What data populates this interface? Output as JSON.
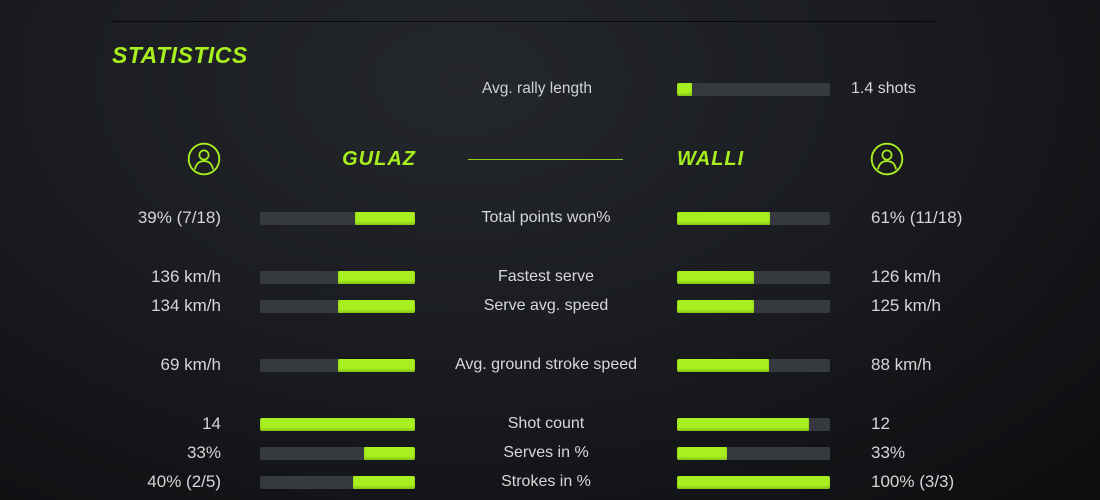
{
  "colors": {
    "accent": "#a7ef1e",
    "track": "#36393d",
    "text": "#d4d6d7"
  },
  "chart_data": {
    "type": "bar",
    "title": "STATISTICS",
    "legend_position": "top",
    "players": {
      "left": {
        "name": "GULAZ"
      },
      "right": {
        "name": "WALLI"
      }
    },
    "header_stat": {
      "label": "Avg. rally length",
      "value": "1.4 shots",
      "fill_pct": 10
    },
    "rows": [
      {
        "label": "Total points won%",
        "left": "39% (7/18)",
        "right": "61% (11/18)",
        "left_pct": 39,
        "right_pct": 61
      },
      {
        "label": "Fastest serve",
        "left": "136 km/h",
        "right": "126 km/h",
        "left_pct": 50,
        "right_pct": 50
      },
      {
        "label": "Serve avg. speed",
        "left": "134 km/h",
        "right": "125 km/h",
        "left_pct": 50,
        "right_pct": 50
      },
      {
        "label": "Avg. ground stroke speed",
        "left": "69 km/h",
        "right": "88 km/h",
        "left_pct": 50,
        "right_pct": 60
      },
      {
        "label": "Shot count",
        "left": "14",
        "right": "12",
        "left_pct": 100,
        "right_pct": 86
      },
      {
        "label": "Serves in %",
        "left": "33%",
        "right": "33%",
        "left_pct": 33,
        "right_pct": 33
      },
      {
        "label": "Strokes in %",
        "left": "40% (2/5)",
        "right": "100% (3/3)",
        "left_pct": 40,
        "right_pct": 100
      }
    ]
  }
}
